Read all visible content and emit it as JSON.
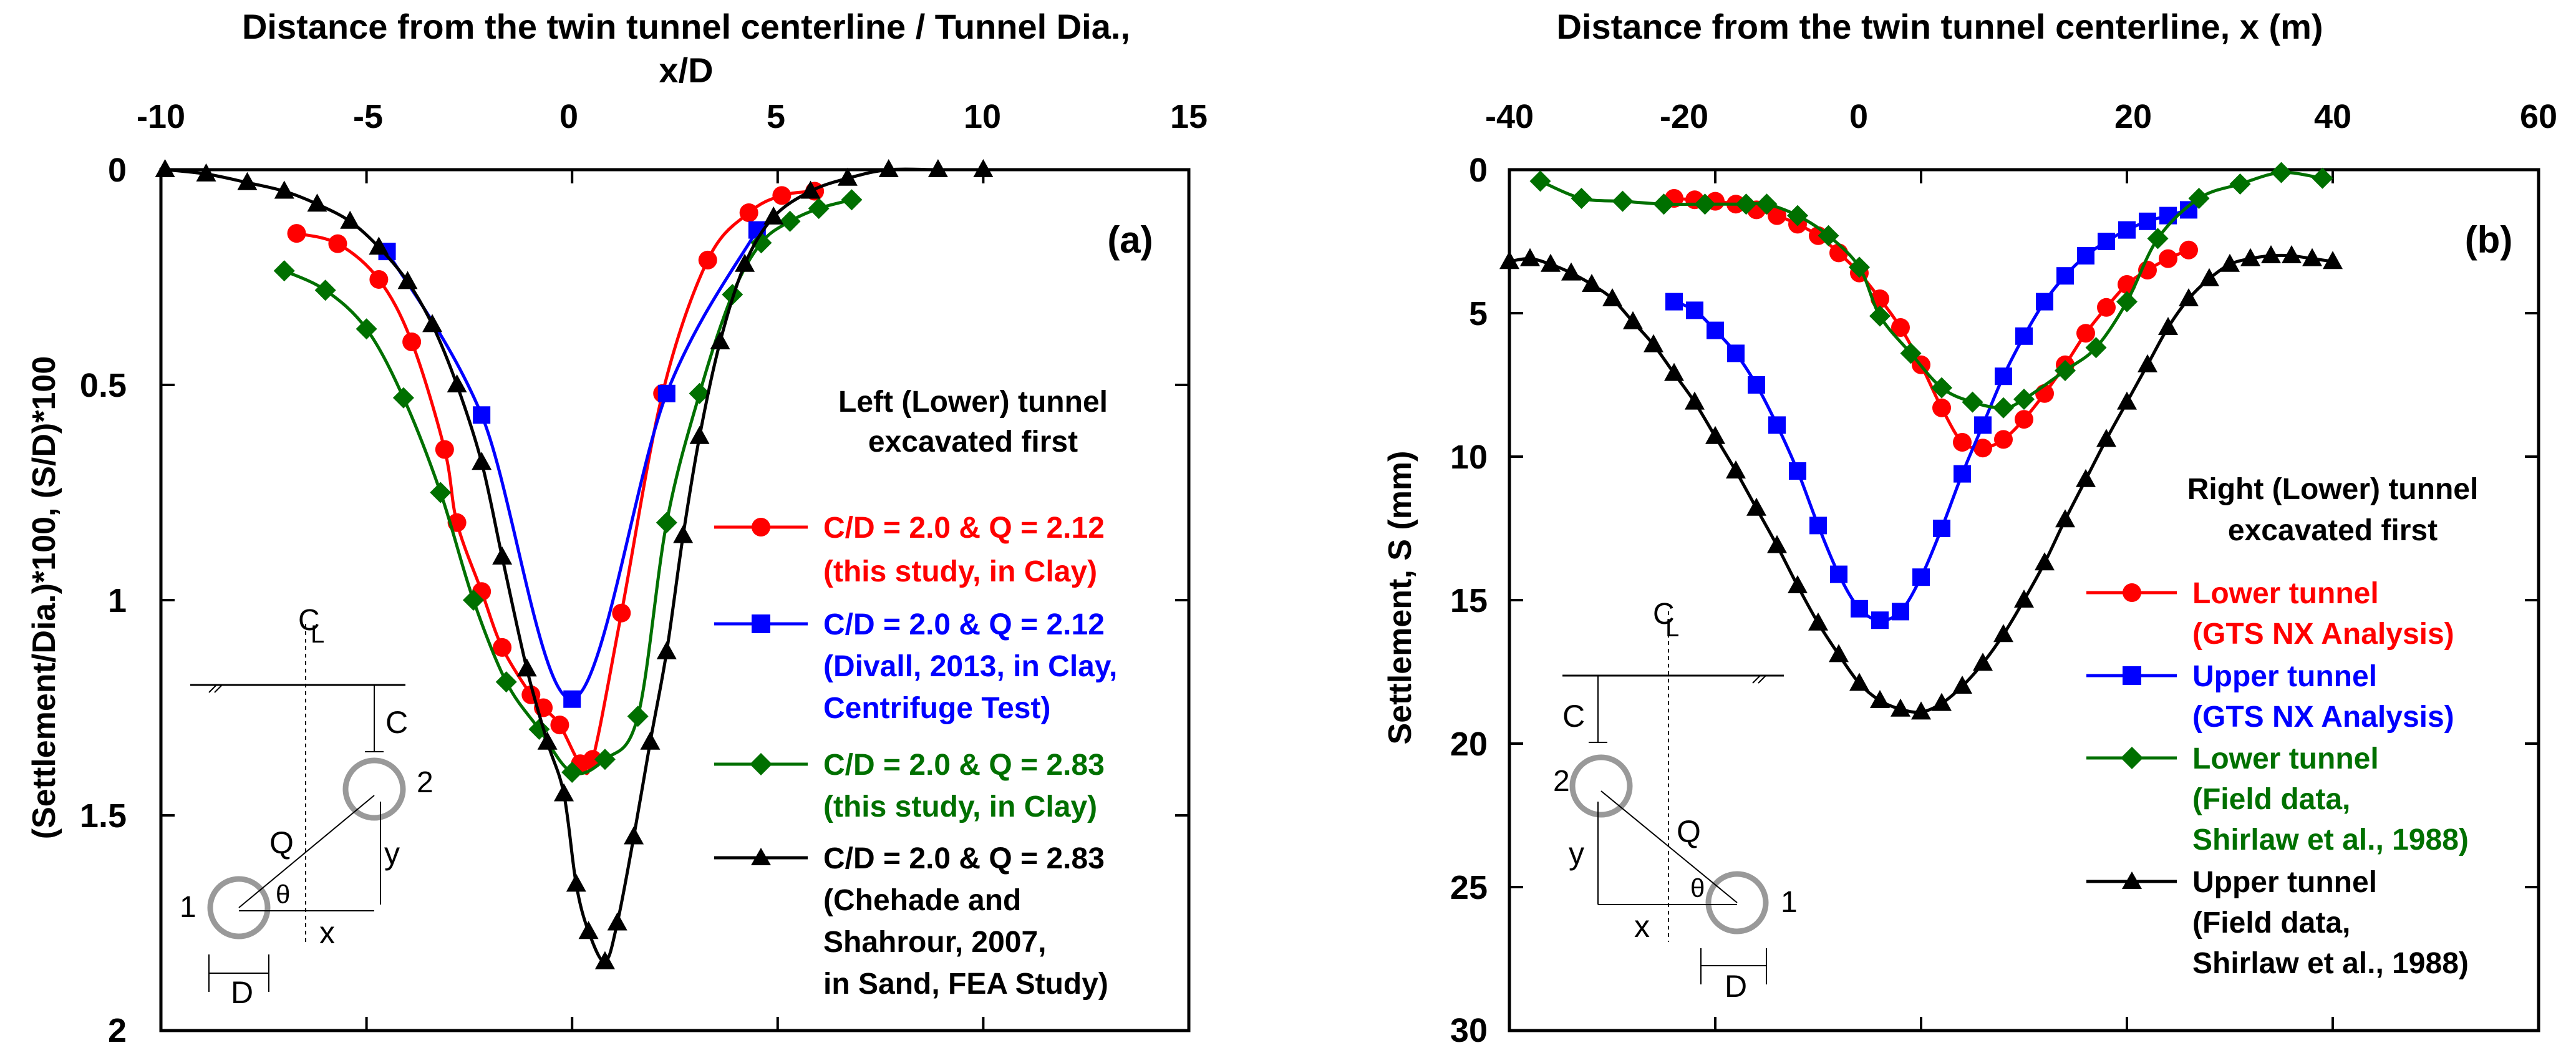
{
  "chart_data": [
    {
      "id": "a",
      "type": "line",
      "panel_label": "(a)",
      "title": "Distance from the twin tunnel centerline / Tunnel Dia.,",
      "title2": "x/D",
      "xlabel": "x/D",
      "ylabel": "(Settlement/Dia.)*100, (S/D)*100",
      "xlim": [
        -10,
        15
      ],
      "ylim": [
        0,
        2
      ],
      "y_inverted": true,
      "x_ticks": [
        -10,
        -5,
        0,
        5,
        10,
        15
      ],
      "y_ticks": [
        0,
        0.5,
        1,
        1.5,
        2
      ],
      "x_tick_labels": [
        "-10",
        "-5",
        "0",
        "5",
        "10",
        "15"
      ],
      "y_tick_labels": [
        "0",
        "0.5",
        "1",
        "1.5",
        "2"
      ],
      "caption": [
        "Left (Lower) tunnel",
        "excavated first"
      ],
      "series": [
        {
          "name": "C/D = 2.0 & Q = 2.12",
          "legend": [
            "C/D = 2.0 & Q = 2.12",
            "(this study, in Clay)"
          ],
          "color": "#ff0000",
          "marker": "circle",
          "x": [
            -6.7,
            -5.7,
            -4.7,
            -3.9,
            -3.1,
            -2.8,
            -2.2,
            -1.7,
            -1.0,
            -0.7,
            -0.3,
            0.2,
            0.5,
            1.2,
            2.2,
            3.3,
            4.3,
            5.1,
            5.9
          ],
          "y": [
            0.148,
            0.172,
            0.255,
            0.4,
            0.65,
            0.82,
            0.98,
            1.11,
            1.22,
            1.25,
            1.29,
            1.38,
            1.37,
            1.03,
            0.52,
            0.21,
            0.1,
            0.06,
            0.05
          ]
        },
        {
          "name": "C/D = 2.0 & Q = 2.12",
          "legend": [
            "C/D = 2.0 & Q = 2.12",
            "(Divall, 2013, in Clay,",
            "Centrifuge Test)"
          ],
          "color": "#0000ff",
          "marker": "square",
          "x": [
            -4.5,
            -2.2,
            0.0,
            2.3,
            4.5
          ],
          "y": [
            0.19,
            0.57,
            1.23,
            0.52,
            0.14
          ]
        },
        {
          "name": "C/D = 2.0 & Q = 2.83",
          "legend": [
            "C/D = 2.0 & Q = 2.83",
            "(this study, in Clay)"
          ],
          "color": "#007000",
          "marker": "diamond",
          "x": [
            -7.0,
            -6.0,
            -5.0,
            -4.1,
            -3.2,
            -2.4,
            -1.6,
            -0.8,
            0.0,
            0.8,
            1.6,
            2.3,
            3.1,
            3.9,
            4.6,
            5.3,
            6.0,
            6.8
          ],
          "y": [
            0.235,
            0.28,
            0.37,
            0.53,
            0.75,
            1.0,
            1.19,
            1.3,
            1.4,
            1.37,
            1.27,
            0.82,
            0.52,
            0.29,
            0.17,
            0.12,
            0.09,
            0.07
          ]
        },
        {
          "name": "C/D = 2.0 & Q = 2.83",
          "legend": [
            "C/D = 2.0 & Q = 2.83",
            "(Chehade and",
            "Shahrour,  2007,",
            "in Sand, FEA Study)"
          ],
          "color": "#000000",
          "marker": "triangle",
          "x": [
            -9.9,
            -8.9,
            -7.9,
            -7.0,
            -6.2,
            -5.4,
            -4.7,
            -4.0,
            -3.4,
            -2.8,
            -2.2,
            -1.7,
            -1.1,
            -0.6,
            -0.2,
            0.1,
            0.4,
            0.8,
            1.1,
            1.5,
            1.9,
            2.3,
            2.7,
            3.1,
            3.6,
            4.2,
            4.9,
            5.8,
            6.7,
            7.7,
            8.9,
            10.0
          ],
          "y": [
            0.0,
            0.01,
            0.03,
            0.05,
            0.08,
            0.12,
            0.18,
            0.26,
            0.36,
            0.5,
            0.68,
            0.9,
            1.16,
            1.33,
            1.45,
            1.66,
            1.77,
            1.84,
            1.75,
            1.55,
            1.33,
            1.12,
            0.85,
            0.62,
            0.4,
            0.22,
            0.11,
            0.05,
            0.02,
            0.0,
            0.0,
            0.0
          ]
        }
      ],
      "inset": {
        "cl": "C",
        "cl_bar": "L",
        "c": "C",
        "q": "Q",
        "y": "y",
        "x": "x",
        "d": "D",
        "theta": "θ",
        "t1": "1",
        "t2": "2"
      }
    },
    {
      "id": "b",
      "type": "line",
      "panel_label": "(b)",
      "title": "Distance from the twin tunnel centerline, x (m)",
      "xlabel": "x (m)",
      "ylabel": "Settlement, S (mm)",
      "xlim": [
        -40,
        60
      ],
      "ylim": [
        0,
        30
      ],
      "y_inverted": true,
      "x_ticks": [
        -40,
        -20,
        0,
        20,
        40,
        60
      ],
      "y_ticks": [
        0,
        5,
        10,
        15,
        20,
        25,
        30
      ],
      "x_tick_labels": [
        "-40",
        "-20",
        "0",
        "20",
        "40",
        "60"
      ],
      "y_tick_labels": [
        "0",
        "5",
        "10",
        "15",
        "20",
        "25",
        "30"
      ],
      "caption": [
        "Right (Lower) tunnel",
        "excavated first"
      ],
      "series": [
        {
          "name": "Lower tunnel (GTS NX Analysis)",
          "legend": [
            "Lower tunnel",
            "(GTS NX Analysis)"
          ],
          "color": "#ff0000",
          "marker": "circle",
          "x": [
            -24,
            -22,
            -20,
            -18,
            -16,
            -14,
            -12,
            -10,
            -8,
            -6,
            -4,
            -2,
            0,
            2,
            4,
            6,
            8,
            10,
            12,
            14,
            16,
            18,
            20,
            22,
            24,
            26
          ],
          "y": [
            1.0,
            1.05,
            1.1,
            1.2,
            1.4,
            1.6,
            1.9,
            2.3,
            2.9,
            3.6,
            4.5,
            5.5,
            6.8,
            8.3,
            9.5,
            9.7,
            9.4,
            8.7,
            7.8,
            6.8,
            5.7,
            4.8,
            4.0,
            3.5,
            3.1,
            2.8
          ]
        },
        {
          "name": "Upper tunnel (GTS NX Analysis)",
          "legend": [
            "Upper tunnel",
            "(GTS NX Analysis)"
          ],
          "color": "#0000ff",
          "marker": "square",
          "x": [
            -24,
            -22,
            -20,
            -18,
            -16,
            -14,
            -12,
            -10,
            -8,
            -6,
            -4,
            -2,
            0,
            2,
            4,
            6,
            8,
            10,
            12,
            14,
            16,
            18,
            20,
            22,
            24,
            26
          ],
          "y": [
            4.6,
            4.9,
            5.6,
            6.4,
            7.5,
            8.9,
            10.5,
            12.4,
            14.1,
            15.3,
            15.7,
            15.4,
            14.2,
            12.5,
            10.6,
            8.9,
            7.2,
            5.8,
            4.6,
            3.7,
            3.0,
            2.5,
            2.1,
            1.8,
            1.6,
            1.4
          ]
        },
        {
          "name": "Lower tunnel (Field data, Shirlaw et al., 1988)",
          "legend": [
            "Lower tunnel",
            "(Field data,",
            "Shirlaw et al., 1988)"
          ],
          "color": "#007000",
          "marker": "diamond",
          "x": [
            -37,
            -33,
            -29,
            -25,
            -21,
            -17,
            -15,
            -12,
            -9,
            -6,
            -4,
            -1,
            2,
            5,
            8,
            10,
            14,
            17,
            20,
            23,
            27,
            31,
            35,
            39
          ],
          "y": [
            0.4,
            1.0,
            1.1,
            1.2,
            1.2,
            1.2,
            1.2,
            1.6,
            2.3,
            3.4,
            5.1,
            6.4,
            7.6,
            8.1,
            8.3,
            8.0,
            7.0,
            6.2,
            4.6,
            2.4,
            1.0,
            0.5,
            0.1,
            0.3
          ]
        },
        {
          "name": "Upper tunnel (Field data, Shirlaw et al., 1988)",
          "legend": [
            "Upper tunnel",
            "(Field data,",
            "Shirlaw et al., 1988)"
          ],
          "color": "#000000",
          "marker": "triangle",
          "x": [
            -40,
            -38,
            -36,
            -34,
            -32,
            -30,
            -28,
            -26,
            -24,
            -22,
            -20,
            -18,
            -16,
            -14,
            -12,
            -10,
            -8,
            -6,
            -4,
            -2,
            0,
            2,
            4,
            6,
            8,
            10,
            12,
            14,
            16,
            18,
            20,
            22,
            24,
            26,
            28,
            30,
            32,
            34,
            36,
            38,
            40
          ],
          "y": [
            3.2,
            3.1,
            3.3,
            3.6,
            4.0,
            4.5,
            5.3,
            6.1,
            7.1,
            8.1,
            9.3,
            10.5,
            11.8,
            13.1,
            14.5,
            15.8,
            16.9,
            17.9,
            18.5,
            18.8,
            18.9,
            18.6,
            18.0,
            17.2,
            16.2,
            15.0,
            13.7,
            12.2,
            10.8,
            9.4,
            8.1,
            6.8,
            5.5,
            4.5,
            3.8,
            3.3,
            3.1,
            3.0,
            3.0,
            3.1,
            3.2
          ]
        }
      ],
      "inset": {
        "cl": "C",
        "cl_bar": "L",
        "c": "C",
        "q": "Q",
        "y": "y",
        "x": "x",
        "d": "D",
        "theta": "θ",
        "t1": "1",
        "t2": "2"
      }
    }
  ]
}
